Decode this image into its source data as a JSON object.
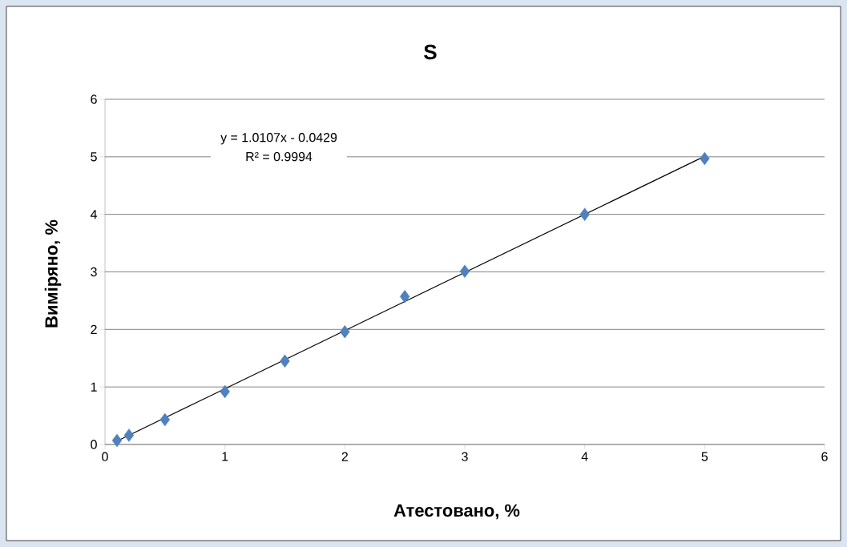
{
  "chart_data": {
    "type": "scatter",
    "title": "S",
    "xlabel": "Атестовано, %",
    "ylabel": "Виміряно, %",
    "annotations": [
      "y = 1.0107x - 0.0429",
      "R² = 0.9994"
    ],
    "xlim": [
      0,
      6
    ],
    "ylim": [
      0,
      6
    ],
    "xticks": [
      0,
      1,
      2,
      3,
      4,
      5,
      6
    ],
    "yticks": [
      0,
      1,
      2,
      3,
      4,
      5,
      6
    ],
    "grid": "y",
    "series": [
      {
        "marker": "diamond",
        "color": "#4f81bd",
        "x": [
          0.1,
          0.2,
          0.5,
          1,
          1.5,
          2,
          2.5,
          3,
          4,
          5
        ],
        "values": [
          0.07,
          0.16,
          0.43,
          0.92,
          1.45,
          1.96,
          2.57,
          3.01,
          4.0,
          4.97
        ]
      },
      {
        "type": "line",
        "marker": "none",
        "color": "#000000",
        "x": [
          0.1,
          5
        ],
        "values": [
          0.06,
          5.01
        ]
      }
    ]
  }
}
